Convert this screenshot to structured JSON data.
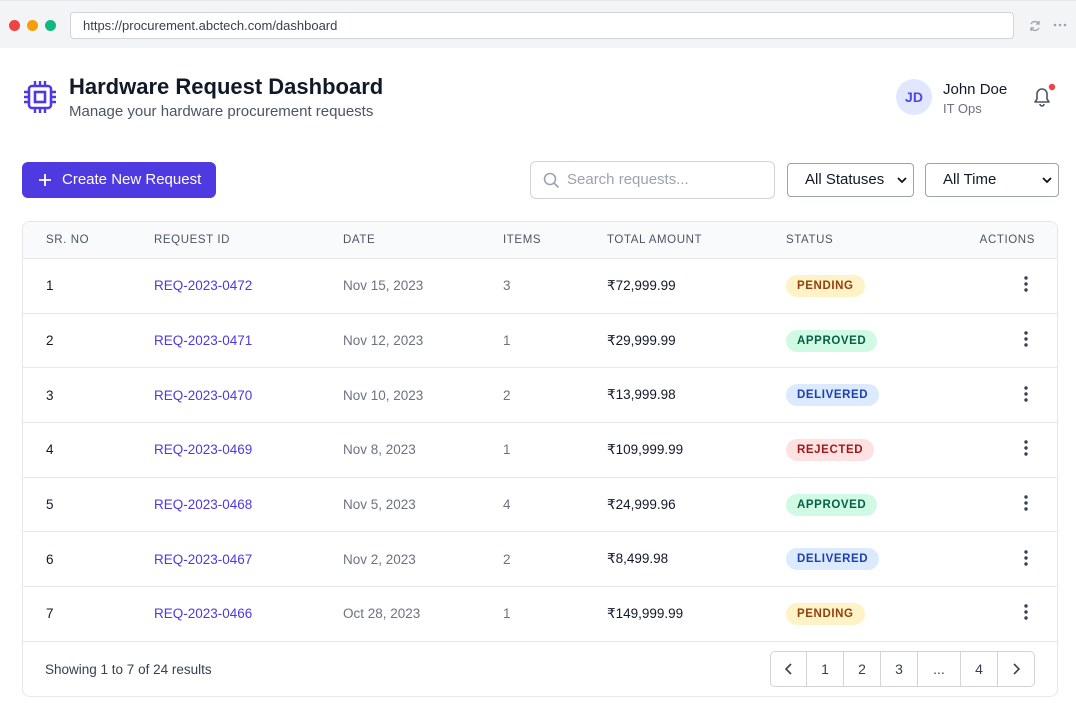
{
  "browser": {
    "url": "https://procurement.abctech.com/dashboard"
  },
  "header": {
    "title": "Hardware Request Dashboard",
    "subtitle": "Manage your hardware procurement requests",
    "user": {
      "initials": "JD",
      "name": "John Doe",
      "role": "IT Ops"
    }
  },
  "toolbar": {
    "create_button": "Create New Request",
    "search_placeholder": "Search requests...",
    "status_filter": "All Statuses",
    "time_filter": "All Time"
  },
  "table": {
    "columns": [
      "SR. NO",
      "REQUEST ID",
      "DATE",
      "ITEMS",
      "TOTAL AMOUNT",
      "STATUS",
      "ACTIONS"
    ],
    "rows": [
      [
        "1",
        "REQ-2023-0472",
        "Nov 15, 2023",
        "3",
        "₹72,999.99",
        "PENDING"
      ],
      [
        "2",
        "REQ-2023-0471",
        "Nov 12, 2023",
        "1",
        "₹29,999.99",
        "APPROVED"
      ],
      [
        "3",
        "REQ-2023-0470",
        "Nov 10, 2023",
        "2",
        "₹13,999.98",
        "DELIVERED"
      ],
      [
        "4",
        "REQ-2023-0469",
        "Nov 8, 2023",
        "1",
        "₹109,999.99",
        "REJECTED"
      ],
      [
        "5",
        "REQ-2023-0468",
        "Nov 5, 2023",
        "4",
        "₹24,999.96",
        "APPROVED"
      ],
      [
        "6",
        "REQ-2023-0467",
        "Nov 2, 2023",
        "2",
        "₹8,499.98",
        "DELIVERED"
      ],
      [
        "7",
        "REQ-2023-0466",
        "Oct 28, 2023",
        "1",
        "₹149,999.99",
        "PENDING"
      ]
    ]
  },
  "footer": {
    "summary": "Showing 1 to 7 of 24 results",
    "pages": [
      "1",
      "2",
      "3",
      "...",
      "4"
    ]
  }
}
